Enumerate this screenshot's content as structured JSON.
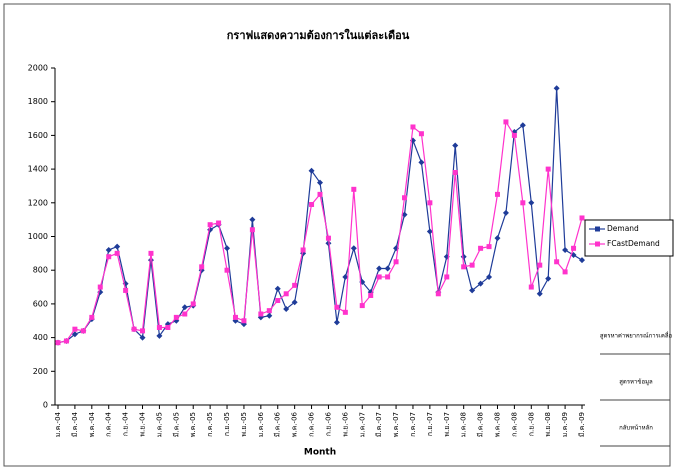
{
  "chart_data": {
    "type": "line",
    "title": "กราฟแสดงความต้องการในแต่ละเดือน",
    "x_label": "Month",
    "categories": [
      "ม.ค.-04",
      null,
      "มี.ค.-04",
      null,
      "พ.ค.-04",
      null,
      "ก.ค.-04",
      null,
      "ก.ย.-04",
      null,
      "พ.ย.-04",
      null,
      "ม.ค.-05",
      null,
      "มี.ค.-05",
      null,
      "พ.ค.-05",
      null,
      "ก.ค.-05",
      null,
      "ก.ย.-05",
      null,
      "พ.ย.-05",
      null,
      "ม.ค.-06",
      null,
      "มี.ค.-06",
      null,
      "พ.ค.-06",
      null,
      "ก.ค.-06",
      null,
      "ก.ย.-06",
      null,
      "พ.ย.-06",
      null,
      "ม.ค.-07",
      null,
      "มี.ค.-07",
      null,
      "พ.ค.-07",
      null,
      "ก.ค.-07",
      null,
      "ก.ย.-07",
      null,
      "พ.ย.-07",
      null,
      "ม.ค.-08",
      null,
      "มี.ค.-08",
      null,
      "พ.ค.-08",
      null,
      "ก.ค.-08",
      null,
      "ก.ย.-08",
      null,
      "พ.ย.-08",
      null,
      "ม.ค.-09",
      null,
      "มี.ค.-09"
    ],
    "series": [
      {
        "name": "Demand",
        "color": "#1f3c99",
        "marker": "diamond",
        "values": [
          370,
          380,
          420,
          440,
          510,
          670,
          920,
          940,
          720,
          450,
          400,
          860,
          410,
          480,
          500,
          580,
          590,
          800,
          1040,
          1070,
          930,
          500,
          480,
          1100,
          520,
          530,
          690,
          570,
          610,
          900,
          1390,
          1320,
          960,
          490,
          760,
          930,
          730,
          670,
          810,
          810,
          930,
          1130,
          1570,
          1440,
          1030,
          670,
          880,
          1540,
          880,
          680,
          720,
          760,
          990,
          1140,
          1620,
          1660,
          1200,
          660,
          750,
          1880,
          920,
          890,
          860
        ]
      },
      {
        "name": "FCastDemand",
        "color": "#ff33cc",
        "marker": "square",
        "values": [
          370,
          380,
          450,
          440,
          520,
          700,
          880,
          900,
          680,
          450,
          440,
          900,
          460,
          460,
          520,
          540,
          600,
          820,
          1070,
          1080,
          800,
          520,
          500,
          1040,
          540,
          560,
          620,
          660,
          710,
          920,
          1190,
          1250,
          990,
          580,
          550,
          1280,
          590,
          650,
          760,
          760,
          850,
          1230,
          1650,
          1610,
          1200,
          660,
          760,
          1380,
          820,
          830,
          930,
          940,
          1250,
          1680,
          1600,
          1200,
          700,
          830,
          1400,
          850,
          790,
          930,
          1110
        ]
      }
    ],
    "ylim": [
      0,
      2000
    ],
    "yticks": [
      0,
      200,
      400,
      600,
      800,
      1000,
      1200,
      1400,
      1600,
      1800,
      2000
    ],
    "grid": false,
    "legend": "right",
    "buttons": [
      "สูตรหาค่าพยากรณ์การเคลื่อ",
      "สูตรหาข้อมูล",
      "กลับหน้าหลัก"
    ]
  }
}
